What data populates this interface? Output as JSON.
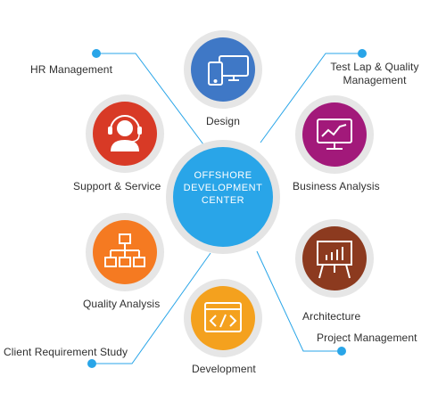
{
  "center": {
    "lines": [
      "OFFSHORE",
      "DEVELOPMENT",
      "CENTER"
    ],
    "color": "#29a5e8"
  },
  "nodes": {
    "design": {
      "label": "Design",
      "color": "#3f78c6",
      "icon": "devices-icon"
    },
    "business_analysis": {
      "label": "Business Analysis",
      "color": "#a2197a",
      "icon": "monitor-chart-icon"
    },
    "architecture": {
      "label": "Architecture",
      "color": "#8c3a1f",
      "icon": "presentation-board-icon"
    },
    "development": {
      "label": "Development",
      "color": "#f4a11e",
      "icon": "code-window-icon"
    },
    "quality_analysis": {
      "label": "Quality Analysis",
      "color": "#f57a21",
      "icon": "sitemap-icon"
    },
    "support_service": {
      "label": "Support & Service",
      "color": "#d83a26",
      "icon": "headset-agent-icon"
    }
  },
  "links": {
    "hr_management": "HR Management",
    "test_lap_quality": [
      "Test Lap & Quality",
      "Management"
    ],
    "project_management": "Project Management",
    "client_requirement": "Client Requirement Study",
    "line_color": "#29a5e8"
  }
}
